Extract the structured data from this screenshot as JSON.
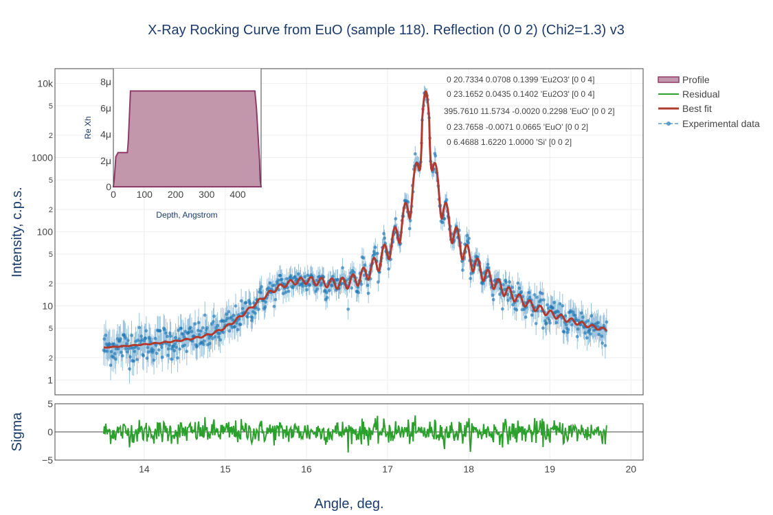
{
  "chart_data": {
    "type": "line",
    "title": "X-Ray Rocking Curve from EuO (sample 118). Reflection (0 0 2) (Chi2=1.3) v3",
    "colors": {
      "experimental": "#1f77b4",
      "best_fit": "#b03a2e",
      "residual": "#2ca02c",
      "profile_fill": "#c397ab",
      "profile_line": "#8e3a68",
      "frame": "#444444",
      "grid": "#eeeeee"
    },
    "main": {
      "xlabel": "Angle, deg.",
      "ylabel": "Intensity, c.p.s.",
      "x_range": [
        12.9,
        20.15
      ],
      "y_scale": "log",
      "y_range_log10": [
        -0.2,
        4.2
      ],
      "x_ticks": [
        14,
        15,
        16,
        17,
        18,
        19,
        20
      ],
      "x_tick_labels": [
        "14",
        "15",
        "16",
        "17",
        "18",
        "19",
        "20"
      ],
      "y_major_ticks": [
        {
          "v": 1,
          "label": "1"
        },
        {
          "v": 10,
          "label": "10"
        },
        {
          "v": 100,
          "label": "100"
        },
        {
          "v": 1000,
          "label": "1000"
        },
        {
          "v": 10000,
          "label": "10k"
        }
      ],
      "y_minor_ticks": [
        {
          "v": 2,
          "label": "2"
        },
        {
          "v": 5,
          "label": "5"
        },
        {
          "v": 20,
          "label": "2"
        },
        {
          "v": 50,
          "label": "5"
        },
        {
          "v": 200,
          "label": "2"
        },
        {
          "v": 500,
          "label": "5"
        },
        {
          "v": 2000,
          "label": "2"
        },
        {
          "v": 5000,
          "label": "5"
        }
      ],
      "x_data_range": [
        13.5,
        19.7
      ],
      "peak_center": 17.47,
      "peak_value": 7800,
      "series": [
        {
          "name": "Best fit",
          "description": "smooth fit curve"
        },
        {
          "name": "Experimental data",
          "description": "points with error bars"
        }
      ]
    },
    "residual": {
      "ylabel": "Sigma",
      "y_range": [
        -5,
        5
      ],
      "y_ticks": [
        {
          "v": 5,
          "label": "5"
        },
        {
          "v": 0,
          "label": "0"
        },
        {
          "v": -5,
          "label": "−5"
        }
      ],
      "series_name": "Residual"
    },
    "inset": {
      "xlabel": "Depth, Angstrom",
      "ylabel": "Re Xh",
      "x_range": [
        0,
        475
      ],
      "y_range": [
        0,
        9e-06
      ],
      "x_ticks": [
        {
          "v": 0,
          "label": "0"
        },
        {
          "v": 100,
          "label": "100"
        },
        {
          "v": 200,
          "label": "200"
        },
        {
          "v": 300,
          "label": "300"
        },
        {
          "v": 400,
          "label": "400"
        }
      ],
      "y_ticks": [
        {
          "v": 0,
          "label": "0"
        },
        {
          "v": 2e-06,
          "label": "2μ"
        },
        {
          "v": 4e-06,
          "label": "4μ"
        },
        {
          "v": 6e-06,
          "label": "6μ"
        },
        {
          "v": 8e-06,
          "label": "8μ"
        }
      ],
      "profile": {
        "depth": [
          0,
          3,
          8,
          15,
          45,
          48,
          55,
          60,
          455,
          460,
          470,
          472,
          475
        ],
        "value": [
          0,
          6e-07,
          2.3e-06,
          2.6e-06,
          2.6e-06,
          3.5e-06,
          7.3e-06,
          7.3e-06,
          7.3e-06,
          6e-06,
          2e-06,
          5e-07,
          0
        ]
      }
    },
    "legend": [
      {
        "label": "Profile",
        "kind": "profile"
      },
      {
        "label": "Residual",
        "kind": "residual"
      },
      {
        "label": "Best fit",
        "kind": "bestfit"
      },
      {
        "label": "Experimental data",
        "kind": "experimental"
      }
    ],
    "layer_annotations": [
      "0   20.7334    0.0708    0.1399     'Eu2O3' [0 0 4]",
      "0   23.1652    0.0435    0.1402    'Eu2O3' [0 0 4]",
      "395.7610   11.5734   -0.0020    0.2298  'EuO' [0 0 2]",
      "0   23.7658   -0.0071    0.0665  'EuO' [0 0 2]",
      "0    6.4688    1.6220    1.0000   'Si' [0 0 2]"
    ]
  }
}
